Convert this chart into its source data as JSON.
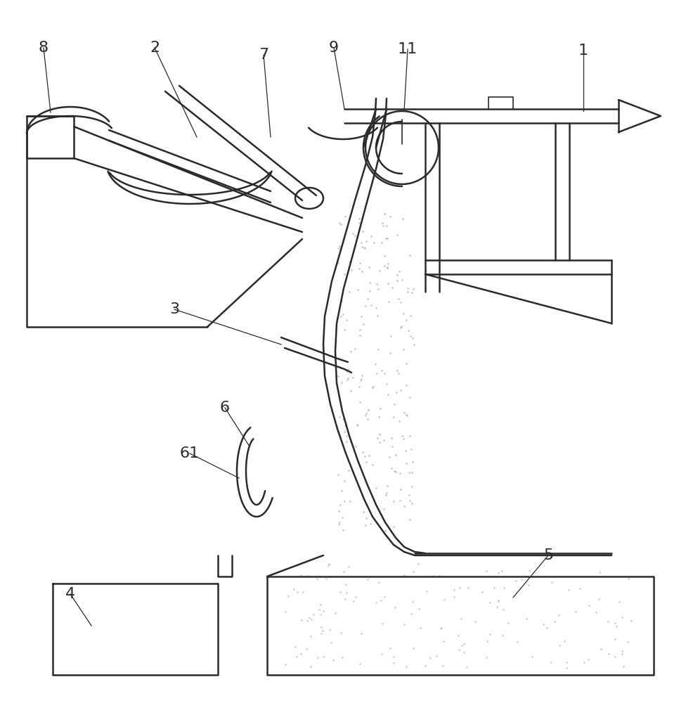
{
  "bg_color": "#ffffff",
  "line_color": "#2a2a2a",
  "lw_main": 1.8,
  "lw_thin": 1.2,
  "dot_color": "#b0b0b0",
  "figsize": [
    9.76,
    10.0
  ],
  "dpi": 100
}
